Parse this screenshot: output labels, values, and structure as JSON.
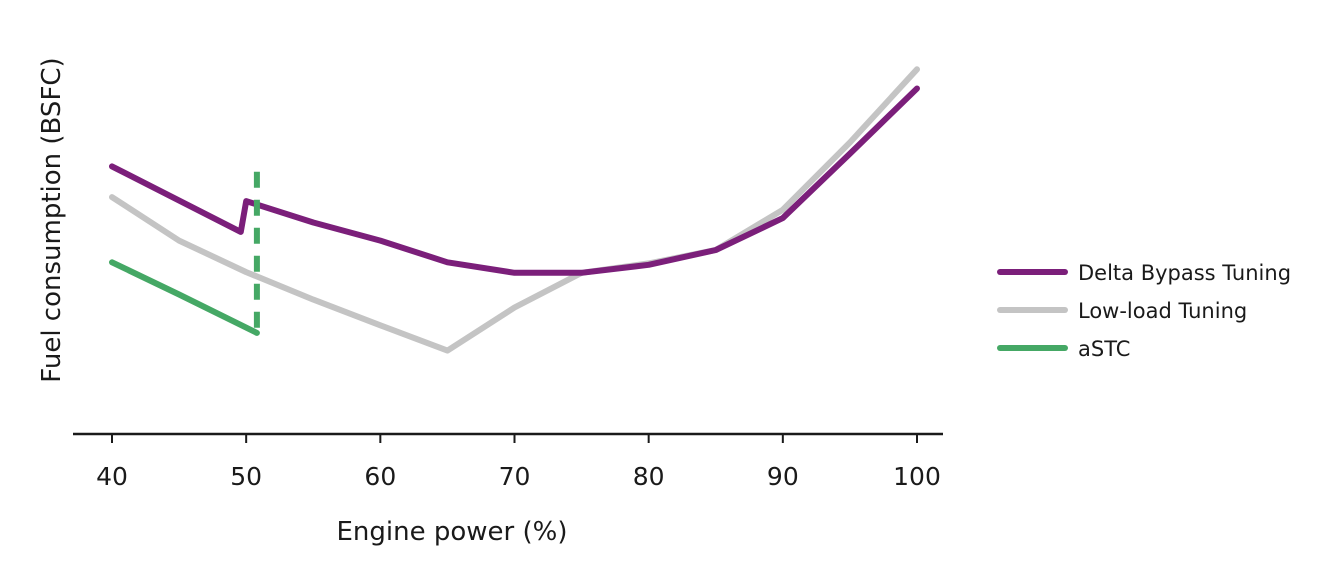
{
  "chart_data": {
    "type": "line",
    "title": "",
    "xlabel": "Engine power (%)",
    "ylabel": "Fuel consumption (BSFC)",
    "xlim": [
      40,
      100
    ],
    "ylim": [
      0,
      100
    ],
    "xticks": [
      {
        "value": 40,
        "label": "40"
      },
      {
        "value": 50,
        "label": "50"
      },
      {
        "value": 60,
        "label": "60"
      },
      {
        "value": 70,
        "label": "70"
      },
      {
        "value": 80,
        "label": "80"
      },
      {
        "value": 90,
        "label": "90"
      },
      {
        "value": 100,
        "label": "100"
      }
    ],
    "y_tick_labels_shown": false,
    "grid": false,
    "legend_position": "right",
    "series": [
      {
        "name": "Delta Bypass Tuning",
        "color": "#7b1f7a",
        "style": "solid",
        "points": [
          [
            40,
            72
          ],
          [
            49.6,
            53.9
          ],
          [
            50,
            62.4
          ],
          [
            55,
            56.5
          ],
          [
            60,
            51.5
          ],
          [
            65,
            45.5
          ],
          [
            70,
            42.6
          ],
          [
            75,
            42.6
          ],
          [
            80,
            44.8
          ],
          [
            85,
            48.9
          ],
          [
            90,
            57.7
          ],
          [
            95,
            75.5
          ],
          [
            100,
            93.5
          ]
        ]
      },
      {
        "name": "Low-load Tuning",
        "color": "#c4c4c4",
        "style": "solid",
        "points": [
          [
            40,
            63.5
          ],
          [
            45,
            51.5
          ],
          [
            50,
            42.8
          ],
          [
            55,
            35.2
          ],
          [
            60,
            28.1
          ],
          [
            65,
            21.1
          ],
          [
            70,
            33
          ],
          [
            75,
            42.6
          ],
          [
            80,
            45.2
          ],
          [
            85,
            48.9
          ],
          [
            90,
            60
          ],
          [
            95,
            78.6
          ],
          [
            100,
            98.8
          ]
        ]
      },
      {
        "name": "aSTC",
        "color": "#45a865",
        "style": "solid",
        "points": [
          [
            40,
            45.5
          ],
          [
            45,
            36.6
          ],
          [
            50.8,
            26
          ]
        ]
      },
      {
        "name": "",
        "color": "#45a865",
        "style": "dashed",
        "points": [
          [
            50.8,
            70.5
          ],
          [
            50.8,
            26
          ]
        ]
      }
    ]
  },
  "legend": {
    "items": [
      {
        "label": "Delta Bypass Tuning",
        "color": "#7b1f7a"
      },
      {
        "label": "Low-load Tuning",
        "color": "#c4c4c4"
      },
      {
        "label": "aSTC",
        "color": "#45a865"
      }
    ]
  }
}
